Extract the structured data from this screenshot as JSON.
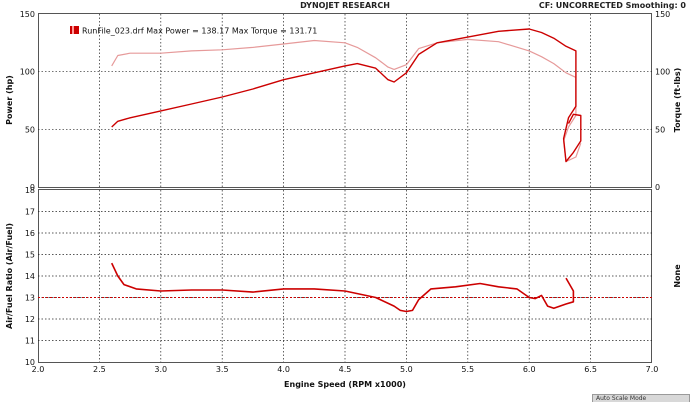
{
  "header": {
    "title": "DYNOJET RESEARCH",
    "status": "CF: UNCORRECTED  Smoothing: 0"
  },
  "status_tab": "Auto Scale Mode",
  "colors": {
    "power": "#cc0000",
    "torque": "#e69a9a",
    "afr": "#cc0000",
    "afr_target": "#cc0000",
    "grid": "#222222"
  },
  "chart_data": [
    {
      "type": "line",
      "legend": "RunFile_023.drf Max Power = 138.17 Max Torque = 131.71",
      "xlim": [
        2.0,
        7.0
      ],
      "ylim": [
        0,
        150
      ],
      "ylabel": "Power (hp)",
      "y2label": "Torque (ft-lbs)",
      "yticks": [
        0,
        50,
        100,
        150
      ],
      "series": [
        {
          "key": "power",
          "x": [
            2.6,
            2.65,
            2.75,
            3.0,
            3.25,
            3.5,
            3.75,
            4.0,
            4.25,
            4.5,
            4.6,
            4.75,
            4.85,
            4.9,
            5.0,
            5.1,
            5.25,
            5.5,
            5.75,
            6.0,
            6.1,
            6.2,
            6.3,
            6.38,
            6.38,
            6.32,
            6.28,
            6.3,
            6.36,
            6.42,
            6.42,
            6.36,
            6.32
          ],
          "y": [
            52,
            57,
            60,
            66,
            72,
            78,
            85,
            93,
            99,
            105,
            107,
            103,
            93,
            91,
            99,
            115,
            125,
            130,
            135,
            137,
            134,
            129,
            122,
            118,
            70,
            60,
            42,
            22,
            30,
            40,
            62,
            63,
            55
          ]
        },
        {
          "key": "torque",
          "x": [
            2.6,
            2.65,
            2.75,
            3.0,
            3.25,
            3.5,
            3.75,
            4.0,
            4.25,
            4.5,
            4.6,
            4.75,
            4.85,
            4.9,
            5.0,
            5.1,
            5.25,
            5.5,
            5.75,
            6.0,
            6.1,
            6.2,
            6.3,
            6.38,
            6.38,
            6.32,
            6.28,
            6.3,
            6.38,
            6.42
          ],
          "y": [
            105,
            114,
            116,
            116,
            118,
            119,
            121,
            124,
            127,
            125,
            121,
            112,
            104,
            102,
            106,
            120,
            125,
            128,
            126,
            118,
            113,
            107,
            99,
            95,
            62,
            52,
            40,
            22,
            26,
            38
          ]
        }
      ]
    },
    {
      "type": "line",
      "xlim": [
        2.0,
        7.0
      ],
      "ylim": [
        10,
        18
      ],
      "xlabel": "Engine Speed (RPM x1000)",
      "ylabel": "Air/Fuel Ratio (Air/Fuel)",
      "y2label": "None",
      "yticks": [
        10,
        11,
        12,
        13,
        14,
        15,
        16,
        17,
        18
      ],
      "xticks": [
        "2.0",
        "2.5",
        "3.0",
        "3.5",
        "4.0",
        "4.5",
        "5.0",
        "5.5",
        "6.0",
        "6.5",
        "7.0"
      ],
      "reference_line": 13.0,
      "series": [
        {
          "key": "afr",
          "x": [
            2.6,
            2.65,
            2.7,
            2.8,
            3.0,
            3.25,
            3.5,
            3.75,
            4.0,
            4.25,
            4.5,
            4.75,
            4.9,
            4.95,
            5.0,
            5.05,
            5.1,
            5.2,
            5.4,
            5.6,
            5.75,
            5.9,
            6.0,
            6.05,
            6.1,
            6.15,
            6.2,
            6.25,
            6.3,
            6.36,
            6.36,
            6.3
          ],
          "y": [
            14.6,
            14.0,
            13.6,
            13.4,
            13.3,
            13.35,
            13.35,
            13.25,
            13.4,
            13.4,
            13.3,
            13.0,
            12.6,
            12.4,
            12.35,
            12.4,
            12.9,
            13.4,
            13.5,
            13.65,
            13.5,
            13.4,
            13.0,
            12.95,
            13.1,
            12.6,
            12.5,
            12.6,
            12.7,
            12.8,
            13.3,
            13.9
          ]
        }
      ]
    }
  ]
}
